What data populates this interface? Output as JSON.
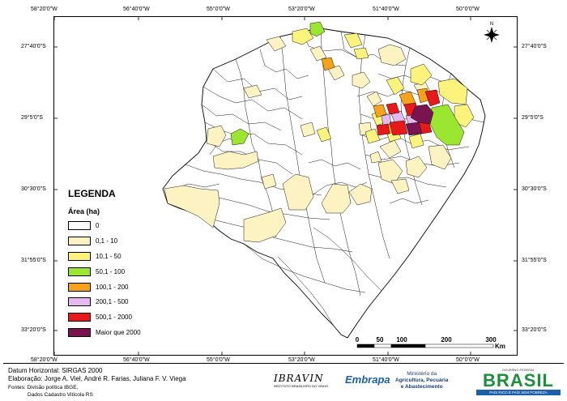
{
  "coords": {
    "top_x": [
      "58°20'0\"W",
      "56°40'0\"W",
      "55°0'0\"W",
      "53°20'0\"W",
      "51°40'0\"W",
      "50°0'0\"W"
    ],
    "bottom_x": [
      "58°20'0\"W",
      "56°40'0\"W",
      "55°0'0\"W",
      "53°20'0\"W",
      "51°40'0\"W",
      "50°0'0\"W"
    ],
    "left_y": [
      "27°40'0\"S",
      "29°5'0\"S",
      "30°30'0\"S",
      "31°55'0\"S",
      "33°20'0\"S"
    ],
    "right_y": [
      "27°40'0\"S",
      "29°5'0\"S",
      "30°30'0\"S",
      "31°55'0\"S",
      "33°20'0\"S"
    ]
  },
  "north_label": "N",
  "legend": {
    "title": "LEGENDA",
    "subtitle": "Área (ha)",
    "items": [
      {
        "label": "0",
        "color": "#ffffff"
      },
      {
        "label": "0,1 - 10",
        "color": "#fdf2c2"
      },
      {
        "label": "10,1 - 50",
        "color": "#fcf37c"
      },
      {
        "label": "50,1 - 100",
        "color": "#9be630"
      },
      {
        "label": "100,1 - 200",
        "color": "#f7a21b"
      },
      {
        "label": "200,1 - 500",
        "color": "#e6b8f0"
      },
      {
        "label": "500,1 - 2000",
        "color": "#e8191a"
      },
      {
        "label": "Maior que 2000",
        "color": "#7a1450"
      }
    ]
  },
  "scale": {
    "ticks": [
      "0",
      "50",
      "100",
      "200",
      "300"
    ],
    "unit": "Km"
  },
  "footer": {
    "datum": "Datum Horizontal: SIRGAS 2000",
    "elaboracao": "Elaboração: Jorge A. Viel, André R. Farias, Juliana F. V. Viega",
    "fontes_1": "Fontes: Divisão política IBGE,",
    "fontes_2": "Dados Cadastro Vitícola RS"
  },
  "logos": {
    "ibravin": "IBRAVIN",
    "ibravin_sub": "INSTITUTO BRASILEIRO DO VINHO",
    "embrapa": "Embrapa",
    "ministerio_1": "Ministério da",
    "ministerio_2": "Agricultura, Pecuária",
    "ministerio_3": "e Abastecimento",
    "brasil_top": "GOVERNO FEDERAL",
    "brasil": "BRASIL",
    "brasil_sub": "PAÍS RICO É PAÍS SEM POBREZA"
  }
}
